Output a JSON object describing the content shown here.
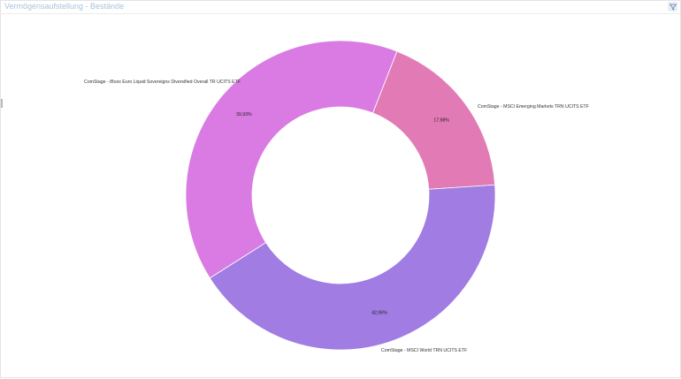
{
  "panel": {
    "title": "Vermögensaufstellung - Bestände"
  },
  "icons": {
    "filter": "filter-icon"
  },
  "chart_data": {
    "type": "pie",
    "donut": true,
    "categories": [
      "ComStage - MSCI Emerging Markets TRN UCITS ETF",
      "ComStage - MSCI World TRN UCITS ETF",
      "ComStage - iBoxx Euro Liquid Sovereigns Diversified Overall TR UCITS ETF"
    ],
    "values": [
      17.98,
      42.06,
      39.93
    ],
    "value_labels": [
      "17,98%",
      "42,06%",
      "39,93%"
    ],
    "colors": [
      "#e27bb5",
      "#a07ce3",
      "#d97be3"
    ],
    "legend": "none"
  }
}
